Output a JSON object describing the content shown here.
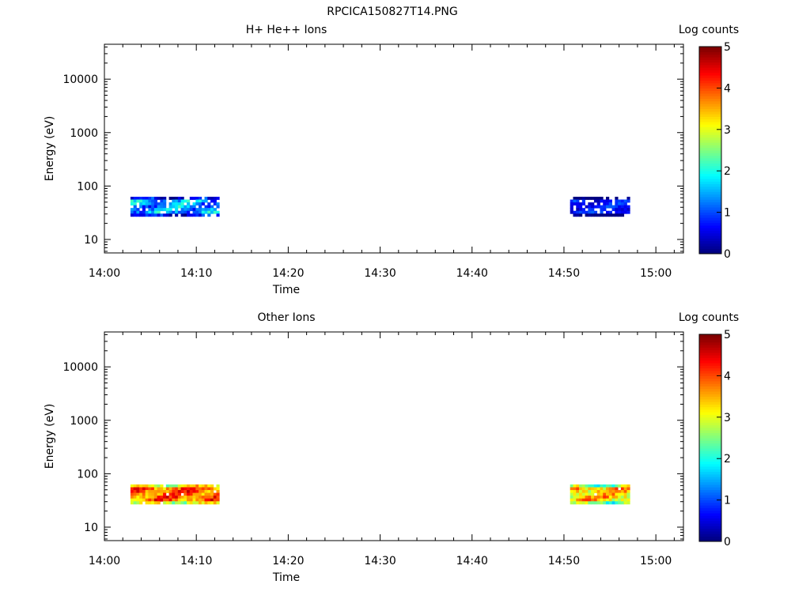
{
  "figure_title": "RPCICA150827T14.PNG",
  "chart_data": [
    {
      "type": "heatmap",
      "title": "H+ He++ Ions",
      "xlabel": "Time",
      "ylabel": "Energy (eV)",
      "x_range": [
        "14:00",
        "15:03"
      ],
      "x_ticks": [
        "14:00",
        "14:10",
        "14:20",
        "14:30",
        "14:40",
        "14:50",
        "15:00"
      ],
      "y_scale": "log",
      "y_range": [
        5.6,
        45000
      ],
      "y_ticks": [
        "10",
        "100",
        "1000",
        "10000"
      ],
      "colorbar": {
        "label": "Log counts",
        "min": 0,
        "max": 5,
        "ticks": [
          "0",
          "1",
          "2",
          "3",
          "4",
          "5"
        ]
      },
      "blocks": [
        {
          "t_start": "14:02:50",
          "t_end": "14:12:30",
          "e_low": 27,
          "e_high": 63,
          "mean_log_counts": 1.4,
          "variability": 0.9,
          "gap_fraction": 0.18
        },
        {
          "t_start": "14:50:40",
          "t_end": "14:57:10",
          "e_low": 27,
          "e_high": 63,
          "mean_log_counts": 0.7,
          "variability": 0.5,
          "gap_fraction": 0.25
        }
      ]
    },
    {
      "type": "heatmap",
      "title": "Other Ions",
      "xlabel": "Time",
      "ylabel": "Energy (eV)",
      "x_range": [
        "14:00",
        "15:03"
      ],
      "x_ticks": [
        "14:00",
        "14:10",
        "14:20",
        "14:30",
        "14:40",
        "14:50",
        "15:00"
      ],
      "y_scale": "log",
      "y_range": [
        5.6,
        45000
      ],
      "y_ticks": [
        "10",
        "100",
        "1000",
        "10000"
      ],
      "colorbar": {
        "label": "Log counts",
        "min": 0,
        "max": 5,
        "ticks": [
          "0",
          "1",
          "2",
          "3",
          "4",
          "5"
        ]
      },
      "blocks": [
        {
          "t_start": "14:02:50",
          "t_end": "14:12:30",
          "e_low": 27,
          "e_high": 63,
          "mean_log_counts": 3.9,
          "variability": 0.9,
          "gap_fraction": 0.03
        },
        {
          "t_start": "14:50:40",
          "t_end": "14:57:10",
          "e_low": 27,
          "e_high": 63,
          "mean_log_counts": 3.4,
          "variability": 0.9,
          "gap_fraction": 0.02
        }
      ]
    }
  ]
}
